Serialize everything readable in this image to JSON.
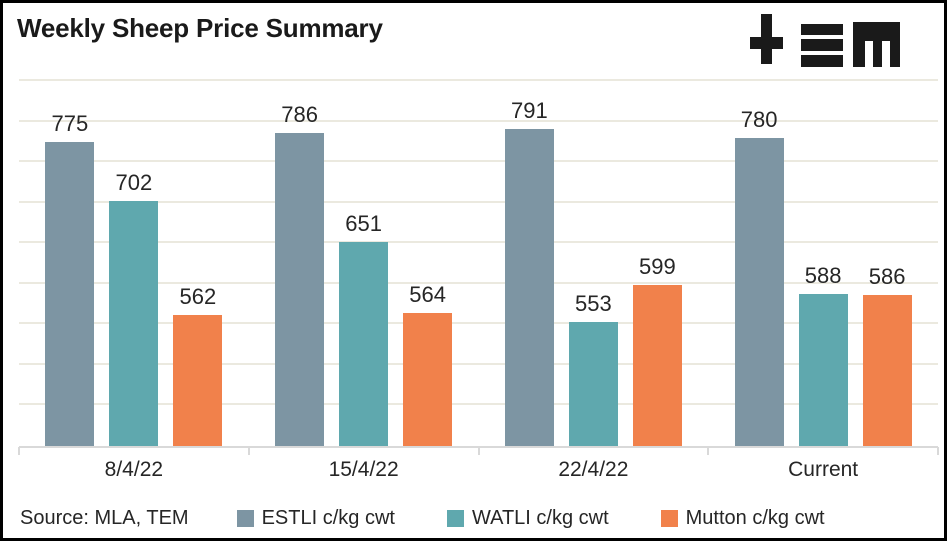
{
  "title": "Weekly Sheep Price Summary",
  "source_note": "Source: MLA, TEM",
  "logo": {
    "name": "TEM logo",
    "color": "#1a1a1a"
  },
  "chart_data": {
    "type": "bar",
    "title": "Weekly Sheep Price Summary",
    "categories": [
      "8/4/22",
      "15/4/22",
      "22/4/22",
      "Current"
    ],
    "series": [
      {
        "name": "ESTLI c/kg cwt",
        "color": "#7D95A3",
        "values": [
          775,
          786,
          791,
          780
        ]
      },
      {
        "name": "WATLI c/kg cwt",
        "color": "#5FA8AE",
        "values": [
          702,
          651,
          553,
          588
        ]
      },
      {
        "name": "Mutton c/kg cwt",
        "color": "#F1814B",
        "values": [
          562,
          564,
          599,
          586
        ]
      }
    ],
    "ylim": [
      400,
      850
    ],
    "gridline_step": 50,
    "grid": true,
    "y_axis_labels_shown": false,
    "data_labels": true,
    "legend_position": "bottom",
    "grid_color": "#EBE9DF",
    "axis_color": "#D9D9D9",
    "label_color": "#262626"
  }
}
